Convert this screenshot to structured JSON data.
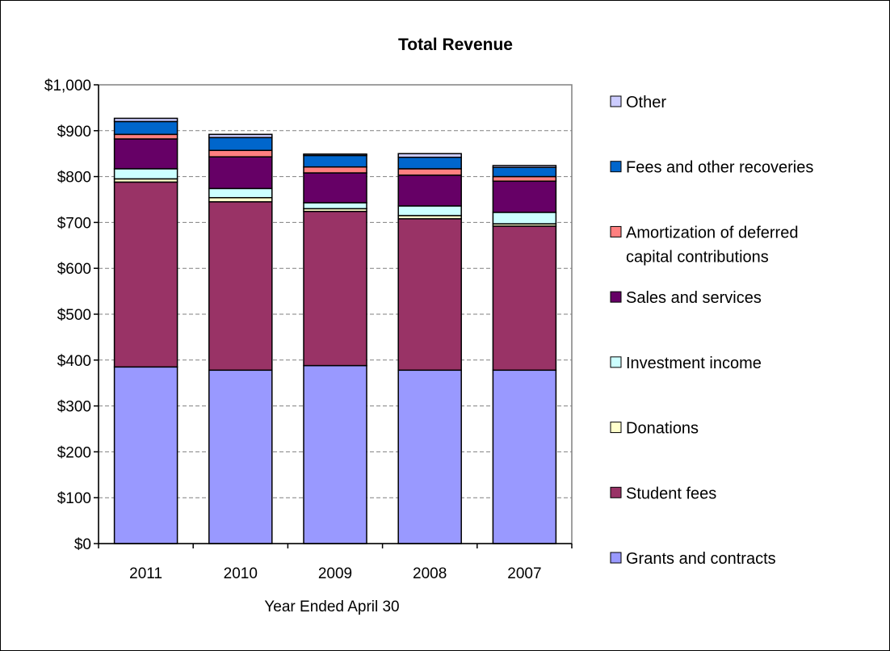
{
  "chart_data": {
    "type": "bar",
    "stacked": true,
    "title": "Total Revenue",
    "xlabel": "Year Ended April 30",
    "ylabel": "",
    "ylim": [
      0,
      1000
    ],
    "y_ticks": [
      "$0",
      "$100",
      "$200",
      "$300",
      "$400",
      "$500",
      "$600",
      "$700",
      "$800",
      "$900",
      "$1,000"
    ],
    "grid": true,
    "legend_position": "right",
    "categories": [
      "2011",
      "2010",
      "2009",
      "2008",
      "2007"
    ],
    "series": [
      {
        "name": "Grants and contracts",
        "color": "#9999ff",
        "values": [
          385,
          378,
          388,
          378,
          378
        ]
      },
      {
        "name": "Student fees",
        "color": "#993366",
        "values": [
          403,
          367,
          336,
          330,
          314
        ]
      },
      {
        "name": "Donations",
        "color": "#ffffcc",
        "values": [
          7,
          9,
          6,
          7,
          5
        ]
      },
      {
        "name": "Investment income",
        "color": "#ccffff",
        "values": [
          22,
          20,
          13,
          21,
          25
        ]
      },
      {
        "name": "Sales and services",
        "color": "#660066",
        "values": [
          65,
          69,
          65,
          67,
          68
        ]
      },
      {
        "name": "Amortization of deferred capital contributions",
        "color": "#ff8080",
        "values": [
          10,
          14,
          13,
          14,
          10
        ]
      },
      {
        "name": "Fees and other recoveries",
        "color": "#0066cc",
        "values": [
          28,
          28,
          25,
          25,
          20
        ]
      },
      {
        "name": "Other",
        "color": "#ccccff",
        "values": [
          7,
          7,
          3,
          8,
          4
        ]
      }
    ]
  }
}
